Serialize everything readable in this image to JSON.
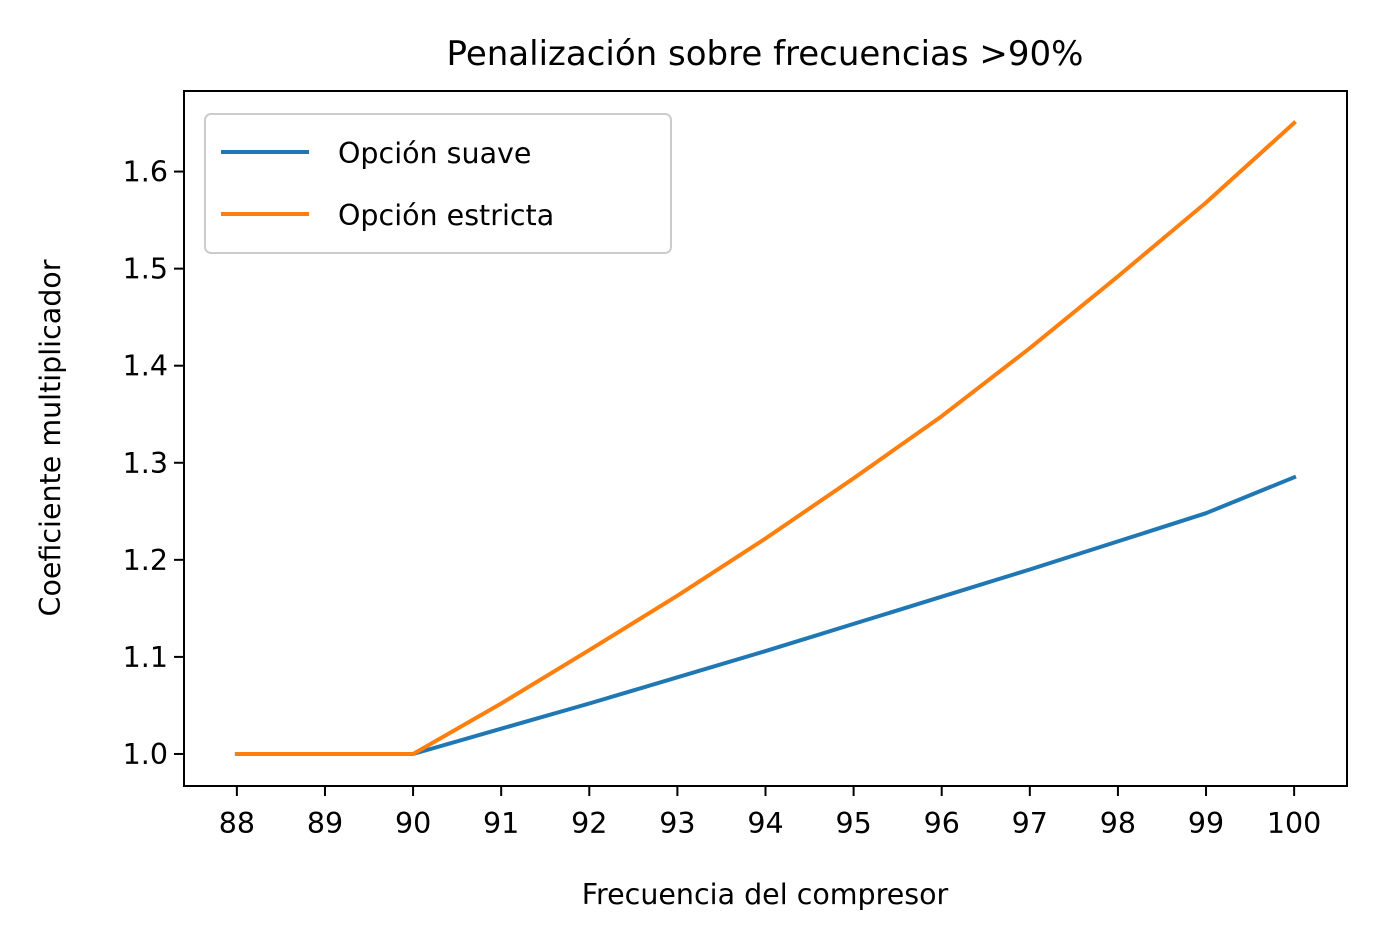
{
  "chart_data": {
    "type": "line",
    "title": "Penalización sobre frecuencias >90%",
    "xlabel": "Frecuencia del compresor",
    "ylabel": "Coeficiente multiplicador",
    "x": [
      88,
      89,
      90,
      91,
      92,
      93,
      94,
      95,
      96,
      97,
      98,
      99,
      100
    ],
    "xlim": [
      87.4,
      100.6
    ],
    "ylim": [
      0.967,
      1.683
    ],
    "xticks": [
      "88",
      "89",
      "90",
      "91",
      "92",
      "93",
      "94",
      "95",
      "96",
      "97",
      "98",
      "99",
      "100"
    ],
    "yticks": [
      "1.0",
      "1.1",
      "1.2",
      "1.3",
      "1.4",
      "1.5",
      "1.6"
    ],
    "ytick_values": [
      1.0,
      1.1,
      1.2,
      1.3,
      1.4,
      1.5,
      1.6
    ],
    "grid": false,
    "legend_position": "upper-left",
    "series": [
      {
        "name": "Opción suave",
        "color": "#1f77b4",
        "values": [
          1.0,
          1.0,
          1.0,
          1.026,
          1.052,
          1.079,
          1.106,
          1.134,
          1.162,
          1.19,
          1.219,
          1.248,
          1.285
        ]
      },
      {
        "name": "Opción estricta",
        "color": "#ff7f0e",
        "values": [
          1.0,
          1.0,
          1.0,
          1.052,
          1.107,
          1.163,
          1.222,
          1.284,
          1.348,
          1.418,
          1.492,
          1.568,
          1.65
        ]
      }
    ]
  }
}
